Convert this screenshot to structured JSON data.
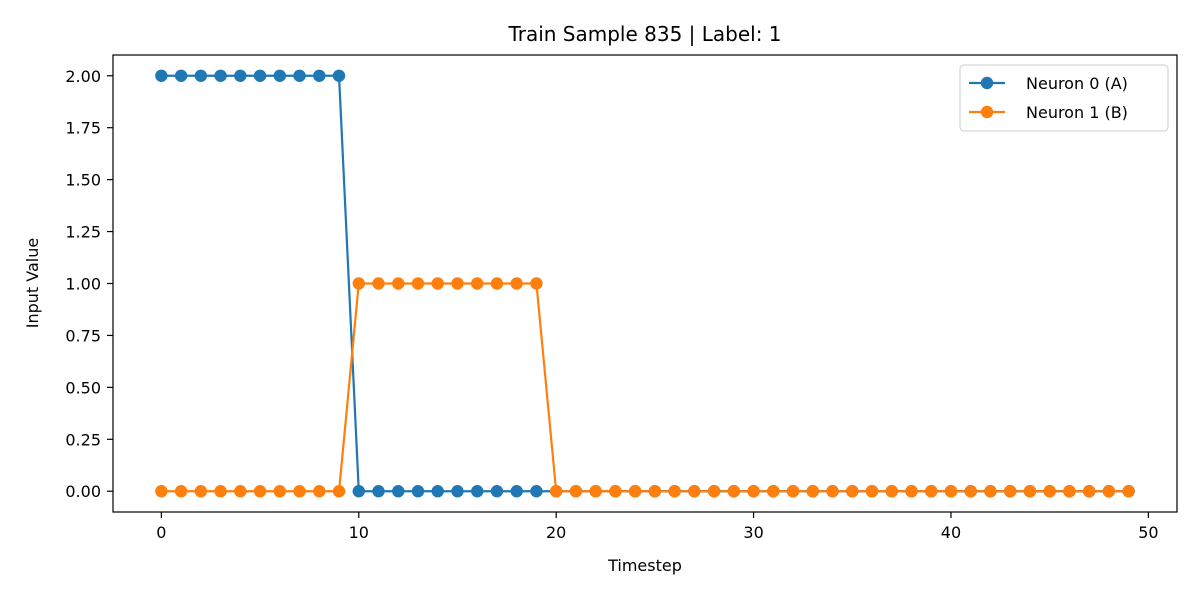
{
  "chart_data": {
    "type": "line",
    "title": "Train Sample 835 | Label: 1",
    "xlabel": "Timestep",
    "ylabel": "Input Value",
    "xlim": [
      -2.45,
      51.45
    ],
    "ylim": [
      -0.1,
      2.1
    ],
    "xticks": [
      0,
      10,
      20,
      30,
      40,
      50
    ],
    "yticks": [
      0.0,
      0.25,
      0.5,
      0.75,
      1.0,
      1.25,
      1.5,
      1.75,
      2.0
    ],
    "ytick_labels": [
      "0.00",
      "0.25",
      "0.50",
      "0.75",
      "1.00",
      "1.25",
      "1.50",
      "1.75",
      "2.00"
    ],
    "grid": false,
    "legend_position": "top-right",
    "x": [
      0,
      1,
      2,
      3,
      4,
      5,
      6,
      7,
      8,
      9,
      10,
      11,
      12,
      13,
      14,
      15,
      16,
      17,
      18,
      19,
      20,
      21,
      22,
      23,
      24,
      25,
      26,
      27,
      28,
      29,
      30,
      31,
      32,
      33,
      34,
      35,
      36,
      37,
      38,
      39,
      40,
      41,
      42,
      43,
      44,
      45,
      46,
      47,
      48,
      49
    ],
    "series": [
      {
        "name": "Neuron 0 (A)",
        "color": "#1f77b4",
        "marker": "circle",
        "values": [
          2,
          2,
          2,
          2,
          2,
          2,
          2,
          2,
          2,
          2,
          0,
          0,
          0,
          0,
          0,
          0,
          0,
          0,
          0,
          0,
          0,
          0,
          0,
          0,
          0,
          0,
          0,
          0,
          0,
          0,
          0,
          0,
          0,
          0,
          0,
          0,
          0,
          0,
          0,
          0,
          0,
          0,
          0,
          0,
          0,
          0,
          0,
          0,
          0,
          0
        ]
      },
      {
        "name": "Neuron 1 (B)",
        "color": "#ff7f0e",
        "marker": "circle",
        "values": [
          0,
          0,
          0,
          0,
          0,
          0,
          0,
          0,
          0,
          0,
          1,
          1,
          1,
          1,
          1,
          1,
          1,
          1,
          1,
          1,
          0,
          0,
          0,
          0,
          0,
          0,
          0,
          0,
          0,
          0,
          0,
          0,
          0,
          0,
          0,
          0,
          0,
          0,
          0,
          0,
          0,
          0,
          0,
          0,
          0,
          0,
          0,
          0,
          0,
          0
        ]
      }
    ]
  }
}
